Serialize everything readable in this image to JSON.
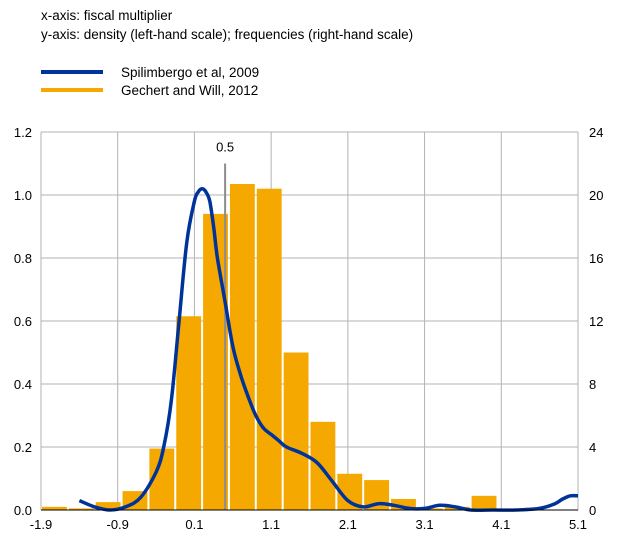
{
  "notes": {
    "x_axis": "x-axis: fiscal multiplier",
    "y_axis": "y-axis: density (left-hand scale); frequencies (right-hand scale)"
  },
  "chart_data": {
    "type": "bar",
    "title": "",
    "xlabel": "",
    "ylabel": "",
    "legend": "top-left",
    "grid": true,
    "xlim": [
      -1.9,
      5.1
    ],
    "ylim": [
      0,
      1.2
    ],
    "y2lim": [
      0,
      24
    ],
    "x_ticks": [
      "-1.9",
      "-0.9",
      "0.1",
      "1.1",
      "2.1",
      "3.1",
      "4.1",
      "5.1"
    ],
    "y_ticks": [
      "0.0",
      "0.2",
      "0.4",
      "0.6",
      "0.8",
      "1.0",
      "1.2"
    ],
    "y2_ticks": [
      "0",
      "4",
      "8",
      "12",
      "16",
      "20",
      "24"
    ],
    "annotation": {
      "x": 0.5,
      "label": "0.5",
      "color": "#8c8c8c"
    },
    "series": [
      {
        "name": "Spilimbergo et al, 2009",
        "type": "line",
        "axis": "left",
        "color": "#003399",
        "x": [
          -1.4,
          -1.2,
          -1.0,
          -0.8,
          -0.6,
          -0.4,
          -0.3,
          -0.2,
          -0.1,
          0.0,
          0.1,
          0.15,
          0.2,
          0.25,
          0.3,
          0.35,
          0.4,
          0.5,
          0.6,
          0.7,
          0.8,
          0.9,
          1.0,
          1.1,
          1.2,
          1.3,
          1.5,
          1.7,
          1.9,
          2.1,
          2.3,
          2.5,
          2.7,
          2.9,
          3.1,
          3.3,
          3.5,
          3.7,
          4.0,
          4.3,
          4.6,
          4.8,
          4.9,
          5.0,
          5.1
        ],
        "values": [
          0.03,
          0.01,
          0.0,
          0.01,
          0.04,
          0.12,
          0.2,
          0.35,
          0.6,
          0.85,
          0.98,
          1.01,
          1.02,
          1.01,
          0.98,
          0.9,
          0.8,
          0.66,
          0.52,
          0.43,
          0.36,
          0.3,
          0.26,
          0.24,
          0.22,
          0.2,
          0.18,
          0.15,
          0.09,
          0.03,
          0.01,
          0.02,
          0.015,
          0.005,
          0.005,
          0.015,
          0.01,
          0.0,
          0.0,
          0.0,
          0.005,
          0.02,
          0.035,
          0.045,
          0.045
        ]
      },
      {
        "name": "Gechert and Will, 2012",
        "type": "bar",
        "axis": "right",
        "color": "#f5a800",
        "bins": [
          {
            "from": -1.9,
            "to": -1.55,
            "value": 0.2
          },
          {
            "from": -1.55,
            "to": -1.2,
            "value": 0.1
          },
          {
            "from": -1.2,
            "to": -0.85,
            "value": 0.5
          },
          {
            "from": -0.85,
            "to": -0.5,
            "value": 1.2
          },
          {
            "from": -0.5,
            "to": -0.15,
            "value": 3.9
          },
          {
            "from": -0.15,
            "to": 0.2,
            "value": 12.3
          },
          {
            "from": 0.2,
            "to": 0.55,
            "value": 18.8
          },
          {
            "from": 0.55,
            "to": 0.9,
            "value": 20.7
          },
          {
            "from": 0.9,
            "to": 1.25,
            "value": 20.4
          },
          {
            "from": 1.25,
            "to": 1.6,
            "value": 10.0
          },
          {
            "from": 1.6,
            "to": 1.95,
            "value": 5.6
          },
          {
            "from": 1.95,
            "to": 2.3,
            "value": 2.3
          },
          {
            "from": 2.3,
            "to": 2.65,
            "value": 1.9
          },
          {
            "from": 2.65,
            "to": 3.0,
            "value": 0.7
          },
          {
            "from": 3.0,
            "to": 3.35,
            "value": 0.1
          },
          {
            "from": 3.35,
            "to": 3.7,
            "value": 0.2
          },
          {
            "from": 3.7,
            "to": 4.05,
            "value": 0.9
          },
          {
            "from": 4.05,
            "to": 4.4,
            "value": 0.0
          },
          {
            "from": 4.4,
            "to": 4.75,
            "value": 0.0
          },
          {
            "from": 4.75,
            "to": 5.1,
            "value": 0.0
          }
        ]
      }
    ]
  }
}
